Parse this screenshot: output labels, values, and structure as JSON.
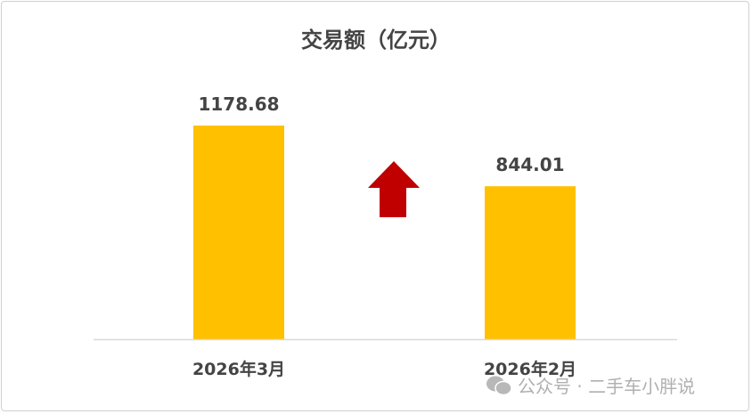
{
  "chart_data": {
    "type": "bar",
    "title": "交易额（亿元）",
    "categories": [
      "2026年3月",
      "2026年2月"
    ],
    "values": [
      1178.68,
      844.01
    ],
    "data_labels": [
      "1178.68",
      "844.01"
    ],
    "ylim": [
      0,
      1400
    ],
    "grid": false,
    "legend": "none",
    "annotation": "up-arrow",
    "colors": {
      "bar": "#FFC000",
      "arrow": "#C00000",
      "axis": "#d9d9d9",
      "text": "#444444"
    }
  },
  "watermark": {
    "text": "公众号 · 二手车小胖说",
    "icon": "wechat-icon"
  }
}
